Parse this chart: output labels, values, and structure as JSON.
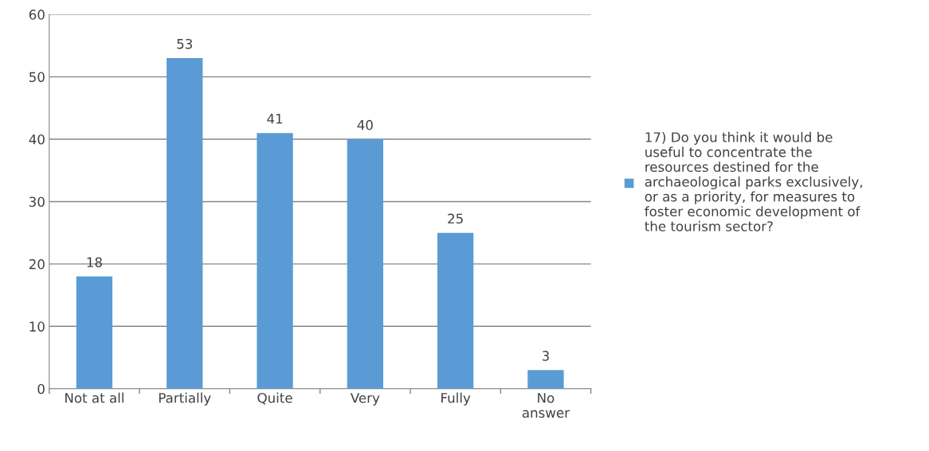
{
  "chart_data": {
    "type": "bar",
    "categories": [
      "Not at all",
      "Partially",
      "Quite",
      "Very",
      "Fully",
      "No\nanswer"
    ],
    "series": [
      {
        "name": "17) Do you think it would be\nuseful to concentrate the\nresources destined for the\narchaeological parks exclusively,\nor as a priority, for measures to\nfoster economic development of\nthe tourism sector?",
        "color": "#5b9bd5",
        "values": [
          18,
          53,
          41,
          40,
          25,
          3
        ]
      }
    ],
    "ylim": [
      0,
      60
    ],
    "yticks": [
      0,
      10,
      20,
      30,
      40,
      50,
      60
    ],
    "grid": "y",
    "legend": "right",
    "data_labels": true
  }
}
